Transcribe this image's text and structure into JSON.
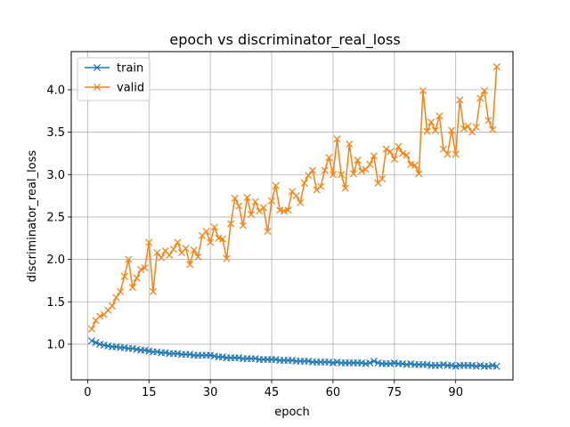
{
  "chart_data": {
    "type": "line",
    "title": "epoch vs discriminator_real_loss",
    "xlabel": "epoch",
    "ylabel": "discriminator_real_loss",
    "xlim": [
      -4,
      104
    ],
    "ylim": [
      0.58,
      4.45
    ],
    "xticks": [
      0,
      15,
      30,
      45,
      60,
      75,
      90
    ],
    "xtick_labels": [
      "0",
      "15",
      "30",
      "45",
      "60",
      "75",
      "90"
    ],
    "yticks": [
      1.0,
      1.5,
      2.0,
      2.5,
      3.0,
      3.5,
      4.0
    ],
    "ytick_labels": [
      "1.0",
      "1.5",
      "2.0",
      "2.5",
      "3.0",
      "3.5",
      "4.0"
    ],
    "grid": true,
    "legend_position": "top-left",
    "marker": "x",
    "x_start": 1,
    "series": [
      {
        "name": "train",
        "color": "#1f77b4",
        "values": [
          1.04,
          1.02,
          1.0,
          0.99,
          0.98,
          0.97,
          0.97,
          0.96,
          0.96,
          0.95,
          0.95,
          0.94,
          0.93,
          0.93,
          0.92,
          0.91,
          0.91,
          0.9,
          0.9,
          0.89,
          0.89,
          0.89,
          0.88,
          0.88,
          0.88,
          0.87,
          0.87,
          0.87,
          0.87,
          0.87,
          0.86,
          0.85,
          0.85,
          0.84,
          0.84,
          0.84,
          0.84,
          0.83,
          0.83,
          0.83,
          0.83,
          0.82,
          0.82,
          0.82,
          0.82,
          0.82,
          0.81,
          0.81,
          0.81,
          0.81,
          0.8,
          0.8,
          0.8,
          0.8,
          0.79,
          0.79,
          0.79,
          0.79,
          0.79,
          0.78,
          0.79,
          0.78,
          0.78,
          0.78,
          0.78,
          0.78,
          0.78,
          0.77,
          0.78,
          0.8,
          0.78,
          0.77,
          0.77,
          0.77,
          0.78,
          0.77,
          0.77,
          0.76,
          0.77,
          0.76,
          0.76,
          0.76,
          0.76,
          0.75,
          0.75,
          0.75,
          0.76,
          0.75,
          0.75,
          0.74,
          0.75,
          0.75,
          0.75,
          0.75,
          0.74,
          0.75,
          0.74,
          0.74,
          0.75,
          0.74
        ]
      },
      {
        "name": "valid",
        "color": "#ff7f0e",
        "values": [
          1.18,
          1.28,
          1.33,
          1.35,
          1.4,
          1.45,
          1.55,
          1.62,
          1.8,
          2.0,
          1.67,
          1.78,
          1.88,
          1.9,
          2.2,
          1.62,
          2.08,
          2.02,
          2.1,
          2.05,
          2.12,
          2.2,
          2.08,
          2.13,
          1.94,
          2.11,
          2.03,
          2.28,
          2.33,
          2.2,
          2.38,
          2.25,
          2.24,
          2.01,
          2.42,
          2.72,
          2.63,
          2.4,
          2.73,
          2.53,
          2.68,
          2.57,
          2.61,
          2.33,
          2.69,
          2.87,
          2.58,
          2.57,
          2.58,
          2.8,
          2.75,
          2.67,
          2.9,
          2.99,
          3.05,
          2.82,
          2.86,
          3.05,
          3.2,
          3.0,
          3.42,
          3.0,
          2.84,
          3.36,
          3.01,
          3.17,
          3.04,
          3.06,
          3.12,
          3.22,
          2.9,
          2.95,
          3.3,
          3.27,
          3.18,
          3.33,
          3.25,
          3.23,
          3.12,
          3.11,
          3.01,
          3.99,
          3.51,
          3.62,
          3.52,
          3.69,
          3.3,
          3.24,
          3.52,
          3.24,
          3.88,
          3.54,
          3.57,
          3.5,
          3.56,
          3.9,
          3.99,
          3.64,
          3.53,
          4.27
        ]
      }
    ]
  }
}
